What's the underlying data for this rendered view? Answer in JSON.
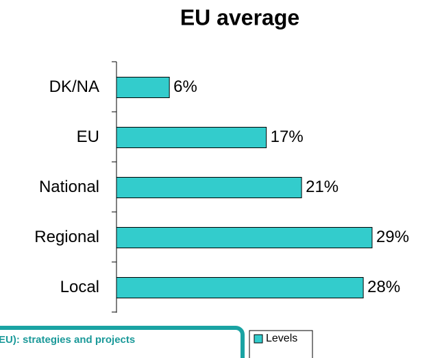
{
  "chart_data": {
    "type": "bar",
    "orientation": "horizontal",
    "title": "EU average",
    "categories": [
      "DK/NA",
      "EU",
      "National",
      "Regional",
      "Local"
    ],
    "values": [
      6,
      17,
      21,
      29,
      28
    ],
    "value_labels": [
      "6%",
      "17%",
      "21%",
      "29%",
      "28%"
    ],
    "series_name": "Levels",
    "color": "#33cccc",
    "annotation": "EU): strategies and projects"
  }
}
